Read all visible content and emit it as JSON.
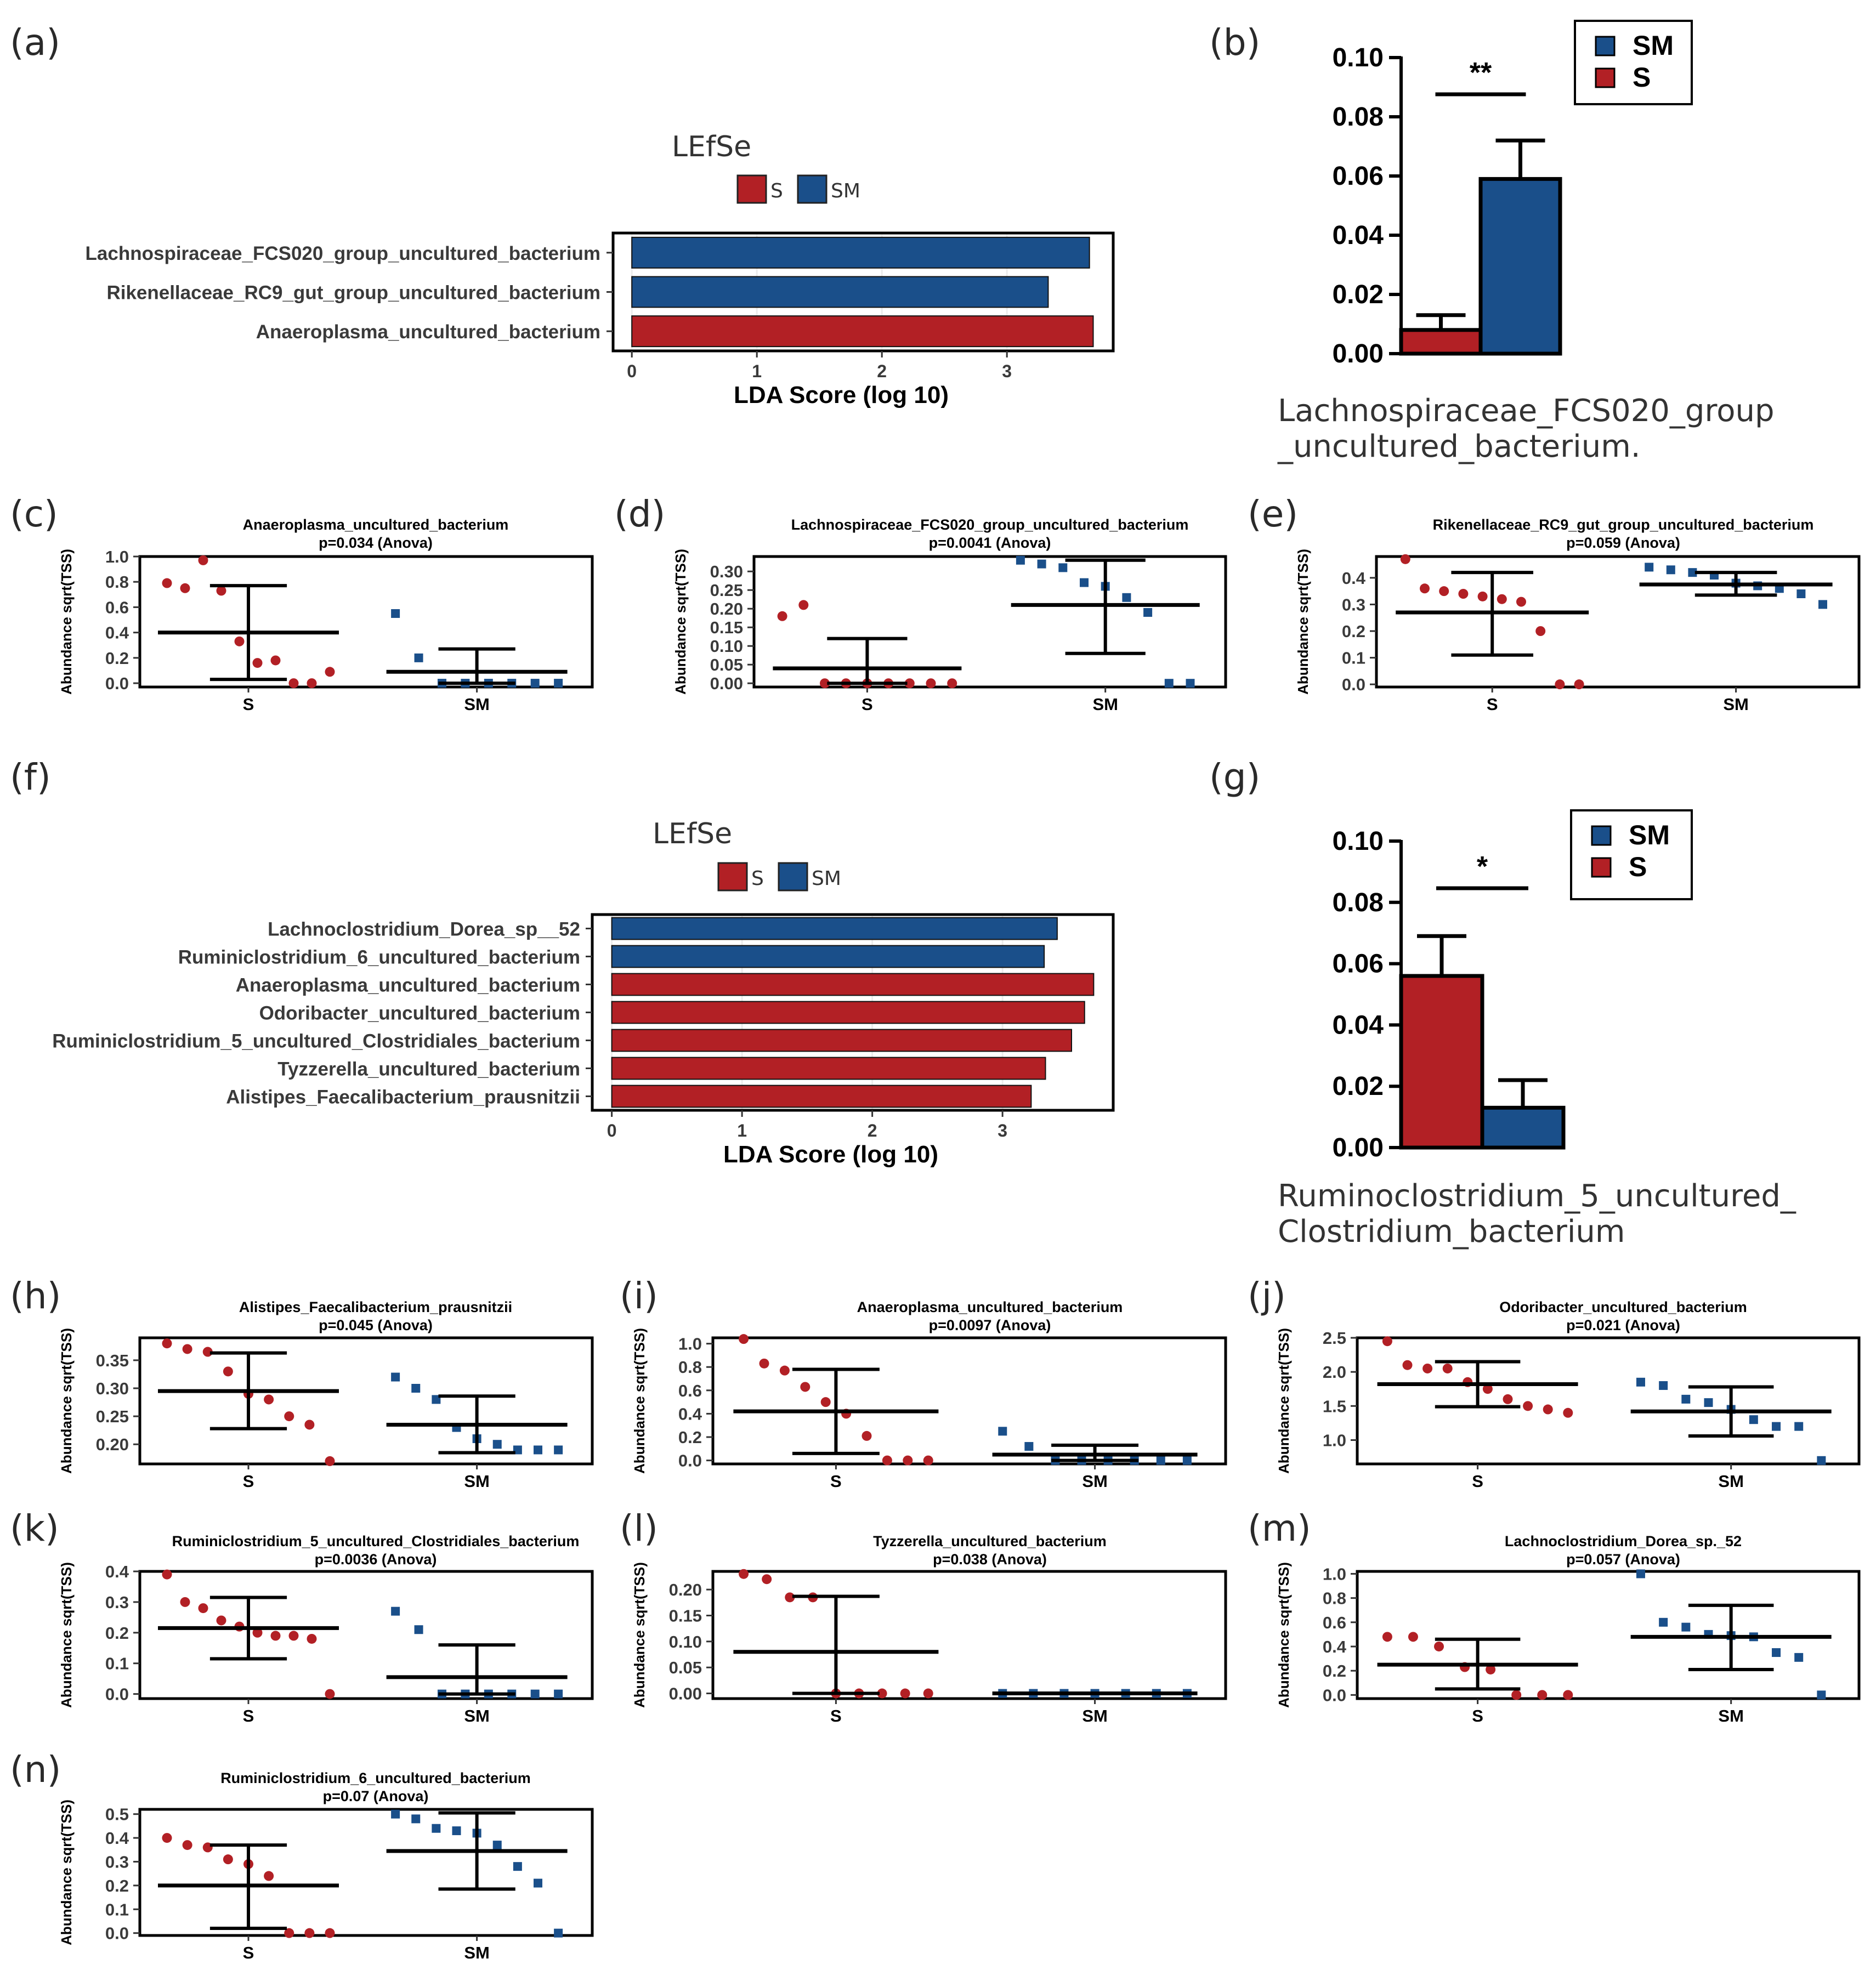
{
  "colors": {
    "S": "#b22025",
    "SM": "#1a4f8a",
    "frame": "#000000"
  },
  "chart_data": [
    {
      "id": "a",
      "panel_label": "(a)",
      "type": "bar",
      "orientation": "horizontal",
      "title": "LEfSe",
      "legend": [
        "S",
        "SM"
      ],
      "xlabel": "LDA Score (log 10)",
      "xticks": [
        "0",
        "1",
        "2",
        "3"
      ],
      "xlim": [
        -0.15,
        3.85
      ],
      "categories": [
        "Lachnospiraceae_FCS020_group_uncultured_bacterium",
        "Rikenellaceae_RC9_gut_group_uncultured_bacterium",
        "Anaeroplasma_uncultured_bacterium"
      ],
      "values": [
        3.66,
        3.33,
        3.69
      ],
      "groups": [
        "SM",
        "SM",
        "S"
      ]
    },
    {
      "id": "b",
      "panel_label": "(b)",
      "type": "bar",
      "orientation": "vertical",
      "ylim": [
        0,
        0.1
      ],
      "yticks": [
        "0.00",
        "0.02",
        "0.04",
        "0.06",
        "0.08",
        "0.10"
      ],
      "legend": [
        "SM",
        "S"
      ],
      "significance": "**",
      "caption_lines": [
        "Lachnospiraceae_FCS020_group",
        "_uncultured_bacterium."
      ],
      "series": [
        {
          "name": "S",
          "value": 0.008,
          "error": 0.013
        },
        {
          "name": "SM",
          "value": 0.059,
          "error": 0.072
        }
      ]
    },
    {
      "id": "f",
      "panel_label": "(f)",
      "type": "bar",
      "orientation": "horizontal",
      "title": "LEfSe",
      "legend": [
        "S",
        "SM"
      ],
      "xlabel": "LDA Score (log 10)",
      "xticks": [
        "0",
        "1",
        "2",
        "3"
      ],
      "xlim": [
        -0.15,
        3.85
      ],
      "categories": [
        "Lachnoclostridium_Dorea_sp__52",
        "Ruminiclostridium_6_uncultured_bacterium",
        "Anaeroplasma_uncultured_bacterium",
        "Odoribacter_uncultured_bacterium",
        "Ruminiclostridium_5_uncultured_Clostridiales_bacterium",
        "Tyzzerella_uncultured_bacterium",
        "Alistipes_Faecalibacterium_prausnitzii"
      ],
      "values": [
        3.42,
        3.32,
        3.7,
        3.63,
        3.53,
        3.33,
        3.22
      ],
      "groups": [
        "SM",
        "SM",
        "S",
        "S",
        "S",
        "S",
        "S"
      ]
    },
    {
      "id": "g",
      "panel_label": "(g)",
      "type": "bar",
      "orientation": "vertical",
      "ylim": [
        0,
        0.1
      ],
      "yticks": [
        "0.00",
        "0.02",
        "0.04",
        "0.06",
        "0.08",
        "0.10"
      ],
      "legend": [
        "SM",
        "S"
      ],
      "significance": "*",
      "caption_lines": [
        "Ruminoclostridium_5_uncultured_",
        "Clostridium_bacterium"
      ],
      "series": [
        {
          "name": "S",
          "value": 0.056,
          "error": 0.069
        },
        {
          "name": "SM",
          "value": 0.013,
          "error": 0.022
        }
      ]
    },
    {
      "id": "c",
      "panel_label": "(c)",
      "type": "scatter",
      "title": "Anaeroplasma_uncultured_bacterium",
      "subtitle": "p=0.034 (Anova)",
      "ylabel": "Abundance sqrt(TSS)",
      "categories": [
        "S",
        "SM"
      ],
      "ylim": [
        -0.03,
        1.0
      ],
      "yticks": [
        0,
        0.2,
        0.4,
        0.6,
        0.8,
        1.0
      ],
      "ytick_labels": [
        "0.0",
        "0.2",
        "0.4",
        "0.6",
        "0.8",
        "1.0"
      ],
      "groups": [
        {
          "name": "S",
          "mean": 0.4,
          "lower": 0.03,
          "upper": 0.77,
          "points": [
            0.79,
            0.75,
            0.97,
            0.73,
            0.33,
            0.16,
            0.18,
            0.0,
            0.0,
            0.09
          ]
        },
        {
          "name": "SM",
          "mean": 0.09,
          "lower": 0.0,
          "upper": 0.27,
          "points": [
            0.55,
            0.2,
            0.0,
            0.0,
            0.0,
            0.0,
            0.0,
            0.0
          ]
        }
      ]
    },
    {
      "id": "d",
      "panel_label": "(d)",
      "type": "scatter",
      "title": "Lachnospiraceae_FCS020_group_uncultured_bacterium",
      "subtitle": "p=0.0041 (Anova)",
      "ylabel": "Abundance sqrt(TSS)",
      "categories": [
        "S",
        "SM"
      ],
      "ylim": [
        -0.01,
        0.34
      ],
      "yticks": [
        0,
        0.05,
        0.1,
        0.15,
        0.2,
        0.25,
        0.3
      ],
      "ytick_labels": [
        "0.00",
        "0.05",
        "0.10",
        "0.15",
        "0.20",
        "0.25",
        "0.30"
      ],
      "groups": [
        {
          "name": "S",
          "mean": 0.04,
          "lower": 0.0,
          "upper": 0.12,
          "points": [
            0.18,
            0.21,
            0.0,
            0.0,
            0.0,
            0.0,
            0.0,
            0.0,
            0.0
          ]
        },
        {
          "name": "SM",
          "mean": 0.21,
          "lower": 0.08,
          "upper": 0.33,
          "points": [
            0.33,
            0.32,
            0.31,
            0.27,
            0.26,
            0.23,
            0.19,
            0.0,
            0.0
          ]
        }
      ]
    },
    {
      "id": "e",
      "panel_label": "(e)",
      "type": "scatter",
      "title": "Rikenellaceae_RC9_gut_group_uncultured_bacterium",
      "subtitle": "p=0.059 (Anova)",
      "ylabel": "Abundance sqrt(TSS)",
      "categories": [
        "S",
        "SM"
      ],
      "ylim": [
        -0.01,
        0.48
      ],
      "yticks": [
        0,
        0.1,
        0.2,
        0.3,
        0.4
      ],
      "ytick_labels": [
        "0.0",
        "0.1",
        "0.2",
        "0.3",
        "0.4"
      ],
      "groups": [
        {
          "name": "S",
          "mean": 0.27,
          "lower": 0.11,
          "upper": 0.42,
          "points": [
            0.47,
            0.36,
            0.35,
            0.34,
            0.33,
            0.32,
            0.31,
            0.2,
            0.0,
            0.0
          ]
        },
        {
          "name": "SM",
          "mean": 0.375,
          "lower": 0.335,
          "upper": 0.42,
          "points": [
            0.44,
            0.43,
            0.42,
            0.41,
            0.38,
            0.37,
            0.36,
            0.34,
            0.3
          ]
        }
      ]
    },
    {
      "id": "h",
      "panel_label": "(h)",
      "type": "scatter",
      "title": "Alistipes_Faecalibacterium_prausnitzii",
      "subtitle": "p=0.045 (Anova)",
      "ylabel": "Abundance sqrt(TSS)",
      "categories": [
        "S",
        "SM"
      ],
      "ylim": [
        0.165,
        0.39
      ],
      "yticks": [
        0.2,
        0.25,
        0.3,
        0.35
      ],
      "ytick_labels": [
        "0.20",
        "0.25",
        "0.30",
        "0.35"
      ],
      "groups": [
        {
          "name": "S",
          "mean": 0.295,
          "lower": 0.228,
          "upper": 0.363,
          "points": [
            0.38,
            0.37,
            0.365,
            0.33,
            0.29,
            0.28,
            0.25,
            0.235,
            0.17
          ]
        },
        {
          "name": "SM",
          "mean": 0.235,
          "lower": 0.185,
          "upper": 0.286,
          "points": [
            0.32,
            0.3,
            0.28,
            0.23,
            0.21,
            0.2,
            0.19,
            0.19,
            0.19
          ]
        }
      ]
    },
    {
      "id": "i",
      "panel_label": "(i)",
      "type": "scatter",
      "title": "Anaeroplasma_uncultured_bacterium",
      "subtitle": "p=0.0097 (Anova)",
      "ylabel": "Abundance sqrt(TSS)",
      "categories": [
        "S",
        "SM"
      ],
      "ylim": [
        -0.03,
        1.05
      ],
      "yticks": [
        0,
        0.2,
        0.4,
        0.6,
        0.8,
        1.0
      ],
      "ytick_labels": [
        "0.0",
        "0.2",
        "0.4",
        "0.6",
        "0.8",
        "1.0"
      ],
      "groups": [
        {
          "name": "S",
          "mean": 0.42,
          "lower": 0.06,
          "upper": 0.78,
          "points": [
            1.04,
            0.83,
            0.77,
            0.63,
            0.5,
            0.4,
            0.21,
            0.0,
            0.0,
            0.0
          ]
        },
        {
          "name": "SM",
          "mean": 0.05,
          "lower": 0.0,
          "upper": 0.13,
          "points": [
            0.25,
            0.12,
            0.0,
            0.0,
            0.0,
            0.0,
            0.0,
            0.0
          ]
        }
      ]
    },
    {
      "id": "j",
      "panel_label": "(j)",
      "type": "scatter",
      "title": "Odoribacter_uncultured_bacterium",
      "subtitle": "p=0.021 (Anova)",
      "ylabel": "Abundance sqrt(TSS)",
      "categories": [
        "S",
        "SM"
      ],
      "ylim": [
        0.65,
        2.5
      ],
      "yticks": [
        1.0,
        1.5,
        2.0,
        2.5
      ],
      "ytick_labels": [
        "1.0",
        "1.5",
        "2.0",
        "2.5"
      ],
      "groups": [
        {
          "name": "S",
          "mean": 1.82,
          "lower": 1.49,
          "upper": 2.15,
          "points": [
            2.45,
            2.1,
            2.05,
            2.05,
            1.85,
            1.75,
            1.6,
            1.5,
            1.45,
            1.4
          ]
        },
        {
          "name": "SM",
          "mean": 1.42,
          "lower": 1.06,
          "upper": 1.78,
          "points": [
            1.85,
            1.8,
            1.6,
            1.55,
            1.45,
            1.3,
            1.2,
            1.2,
            0.7
          ]
        }
      ]
    },
    {
      "id": "k",
      "panel_label": "(k)",
      "type": "scatter",
      "title": "Ruminiclostridium_5_uncultured_Clostridiales_bacterium",
      "subtitle": "p=0.0036 (Anova)",
      "ylabel": "Abundance sqrt(TSS)",
      "categories": [
        "S",
        "SM"
      ],
      "ylim": [
        -0.015,
        0.4
      ],
      "yticks": [
        0,
        0.1,
        0.2,
        0.3,
        0.4
      ],
      "ytick_labels": [
        "0.0",
        "0.1",
        "0.2",
        "0.3",
        "0.4"
      ],
      "groups": [
        {
          "name": "S",
          "mean": 0.215,
          "lower": 0.115,
          "upper": 0.315,
          "points": [
            0.39,
            0.3,
            0.28,
            0.24,
            0.22,
            0.2,
            0.19,
            0.19,
            0.18,
            0.0
          ]
        },
        {
          "name": "SM",
          "mean": 0.055,
          "lower": 0.0,
          "upper": 0.16,
          "points": [
            0.27,
            0.21,
            0.0,
            0.0,
            0.0,
            0.0,
            0.0,
            0.0
          ]
        }
      ]
    },
    {
      "id": "l",
      "panel_label": "(l)",
      "type": "scatter",
      "title": "Tyzzerella_uncultured_bacterium",
      "subtitle": "p=0.038 (Anova)",
      "ylabel": "Abundance sqrt(TSS)",
      "categories": [
        "S",
        "SM"
      ],
      "ylim": [
        -0.01,
        0.235
      ],
      "yticks": [
        0,
        0.05,
        0.1,
        0.15,
        0.2
      ],
      "ytick_labels": [
        "0.00",
        "0.05",
        "0.10",
        "0.15",
        "0.20"
      ],
      "groups": [
        {
          "name": "S",
          "mean": 0.08,
          "lower": 0.0,
          "upper": 0.187,
          "points": [
            0.23,
            0.22,
            0.185,
            0.185,
            0.0,
            0.0,
            0.0,
            0.0,
            0.0
          ]
        },
        {
          "name": "SM",
          "mean": 0.0,
          "lower": 0.0,
          "upper": 0.0,
          "points": [
            0.0,
            0.0,
            0.0,
            0.0,
            0.0,
            0.0,
            0.0
          ]
        }
      ]
    },
    {
      "id": "m",
      "panel_label": "(m)",
      "type": "scatter",
      "title": "Lachnoclostridium_Dorea_sp._52",
      "subtitle": "p=0.057 (Anova)",
      "ylabel": "Abundance sqrt(TSS)",
      "categories": [
        "S",
        "SM"
      ],
      "ylim": [
        -0.03,
        1.02
      ],
      "yticks": [
        0,
        0.2,
        0.4,
        0.6,
        0.8,
        1.0
      ],
      "ytick_labels": [
        "0.0",
        "0.2",
        "0.4",
        "0.6",
        "0.8",
        "1.0"
      ],
      "groups": [
        {
          "name": "S",
          "mean": 0.25,
          "lower": 0.05,
          "upper": 0.46,
          "points": [
            0.48,
            0.48,
            0.4,
            0.23,
            0.21,
            0.0,
            0.0,
            0.0
          ]
        },
        {
          "name": "SM",
          "mean": 0.48,
          "lower": 0.21,
          "upper": 0.74,
          "points": [
            1.0,
            0.6,
            0.56,
            0.5,
            0.49,
            0.48,
            0.35,
            0.31,
            0.0
          ]
        }
      ]
    },
    {
      "id": "n",
      "panel_label": "(n)",
      "type": "scatter",
      "title": "Ruminiclostridium_6_uncultured_bacterium",
      "subtitle": "p=0.07 (Anova)",
      "ylabel": "Abundance sqrt(TSS)",
      "categories": [
        "S",
        "SM"
      ],
      "ylim": [
        -0.01,
        0.52
      ],
      "yticks": [
        0,
        0.1,
        0.2,
        0.3,
        0.4,
        0.5
      ],
      "ytick_labels": [
        "0.0",
        "0.1",
        "0.2",
        "0.3",
        "0.4",
        "0.5"
      ],
      "groups": [
        {
          "name": "S",
          "mean": 0.2,
          "lower": 0.02,
          "upper": 0.37,
          "points": [
            0.4,
            0.37,
            0.36,
            0.31,
            0.29,
            0.24,
            0.0,
            0.0,
            0.0
          ]
        },
        {
          "name": "SM",
          "mean": 0.345,
          "lower": 0.185,
          "upper": 0.505,
          "points": [
            0.5,
            0.48,
            0.44,
            0.43,
            0.42,
            0.37,
            0.28,
            0.21,
            0.0
          ]
        }
      ]
    }
  ]
}
